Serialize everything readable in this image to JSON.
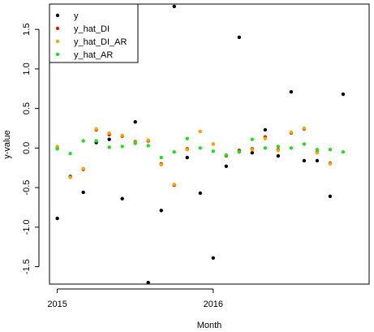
{
  "chart_data": {
    "type": "scatter",
    "title": "",
    "xlabel": "Month",
    "ylabel": "y-value",
    "x_ticks": [
      {
        "value": 2015.0,
        "label": "2015"
      },
      {
        "value": 2016.0,
        "label": "2016"
      }
    ],
    "xlim": [
      2014.95,
      2017.0
    ],
    "y_ticks": [
      -1.5,
      -1.0,
      -0.5,
      0.0,
      0.5,
      1.0,
      1.5
    ],
    "y_tick_labels": [
      "-1.5",
      "-1.0",
      "-0.5",
      "0.0",
      "0.5",
      "1.0",
      "1.5"
    ],
    "ylim": [
      -1.72,
      1.82
    ],
    "legend_position": "top-left",
    "x": [
      2015.0,
      2015.0833,
      2015.1667,
      2015.25,
      2015.3333,
      2015.4167,
      2015.5,
      2015.5833,
      2015.6667,
      2015.75,
      2015.8333,
      2015.9167,
      2016.0,
      2016.0833,
      2016.1667,
      2016.25,
      2016.3333,
      2016.4167,
      2016.5,
      2016.5833,
      2016.6667,
      2016.75,
      2016.8333,
      2016.9167
    ],
    "series": [
      {
        "name": "y",
        "color": "#000000",
        "values": [
          -0.89,
          -0.36,
          -0.56,
          0.07,
          0.11,
          -0.64,
          0.33,
          -1.7,
          -0.79,
          1.79,
          -0.12,
          -0.57,
          -1.39,
          -0.23,
          1.4,
          -0.06,
          0.23,
          -0.1,
          0.71,
          -0.16,
          -0.16,
          -0.61,
          0.68,
          null
        ]
      },
      {
        "name": "y_hat_DI",
        "color": "#cc2200",
        "values": [
          0.01,
          -0.37,
          -0.27,
          0.23,
          0.17,
          0.15,
          0.08,
          0.09,
          -0.2,
          -0.47,
          -0.01,
          0.21,
          0.05,
          -0.1,
          -0.03,
          -0.01,
          0.14,
          -0.02,
          0.19,
          0.24,
          -0.05,
          -0.19,
          null,
          null
        ]
      },
      {
        "name": "y_hat_DI_AR",
        "color": "#ffa500",
        "values": [
          0.02,
          -0.37,
          -0.26,
          0.24,
          0.19,
          0.16,
          0.07,
          0.1,
          -0.21,
          -0.46,
          -0.02,
          0.21,
          0.05,
          -0.09,
          -0.05,
          -0.02,
          0.12,
          -0.03,
          0.2,
          0.25,
          -0.06,
          -0.2,
          null,
          null
        ]
      },
      {
        "name": "y_hat_AR",
        "color": "#22dd22",
        "values": [
          -0.01,
          -0.07,
          0.09,
          0.09,
          0.01,
          0.02,
          0.06,
          0.03,
          -0.12,
          -0.05,
          0.12,
          0.0,
          -0.04,
          -0.09,
          -0.05,
          0.11,
          0.0,
          0.02,
          0.0,
          0.05,
          -0.02,
          -0.02,
          -0.05,
          null
        ]
      }
    ]
  }
}
